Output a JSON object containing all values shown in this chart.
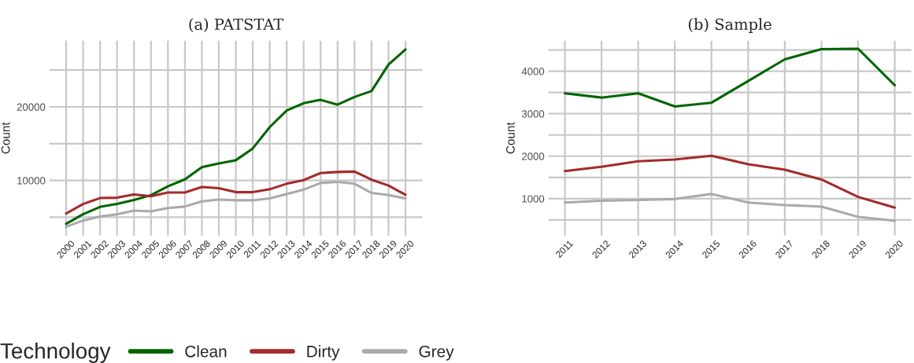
{
  "chart_data": [
    {
      "type": "line",
      "title": "(a) PATSTAT",
      "ylabel": "Count",
      "legend": "bottom",
      "legend_title": "Technology",
      "grid": true,
      "categories": [
        "2000",
        "2001",
        "2002",
        "2003",
        "2004",
        "2005",
        "2006",
        "2007",
        "2008",
        "2009",
        "2010",
        "2011",
        "2012",
        "2013",
        "2014",
        "2015",
        "2016",
        "2017",
        "2018",
        "2019",
        "2020"
      ],
      "ylim": [
        2500,
        29000
      ],
      "yticks": [
        {
          "value": 5000,
          "label": null
        },
        10000,
        {
          "value": 15000,
          "label": null
        },
        20000,
        {
          "value": 25000,
          "label": null
        }
      ],
      "series": [
        {
          "name": "Clean",
          "color": "#006400",
          "values": [
            4100,
            5400,
            6400,
            6800,
            7350,
            8000,
            9200,
            10150,
            11800,
            12300,
            12750,
            14350,
            17250,
            19500,
            20500,
            20950,
            20300,
            21350,
            22150,
            25750,
            27800
          ]
        },
        {
          "name": "Dirty",
          "color": "#a52a2a",
          "values": [
            5500,
            6800,
            7600,
            7650,
            8100,
            7850,
            8350,
            8350,
            9100,
            8950,
            8400,
            8400,
            8800,
            9550,
            10050,
            11000,
            11150,
            11200,
            10100,
            9300,
            8050
          ]
        },
        {
          "name": "Grey",
          "color": "#aaaaaa",
          "values": [
            3700,
            4550,
            5100,
            5400,
            5900,
            5800,
            6250,
            6450,
            7150,
            7400,
            7300,
            7300,
            7550,
            8150,
            8750,
            9650,
            9800,
            9550,
            8300,
            8000,
            7550
          ]
        }
      ]
    },
    {
      "type": "line",
      "title": "(b) Sample",
      "ylabel": "Count",
      "legend": "bottom",
      "grid": true,
      "categories": [
        "2011",
        "2012",
        "2013",
        "2014",
        "2015",
        "2016",
        "2017",
        "2018",
        "2019",
        "2020"
      ],
      "ylim": [
        130,
        4720
      ],
      "yticks": [
        {
          "value": 500,
          "label": null
        },
        1000,
        {
          "value": 1500,
          "label": null
        },
        2000,
        {
          "value": 2500,
          "label": null
        },
        3000,
        {
          "value": 3500,
          "label": null
        },
        4000,
        {
          "value": 4500,
          "label": null
        }
      ],
      "series": [
        {
          "name": "Clean",
          "color": "#006400",
          "values": [
            3480,
            3380,
            3480,
            3170,
            3260,
            3770,
            4280,
            4520,
            4530,
            3670
          ]
        },
        {
          "name": "Dirty",
          "color": "#a52a2a",
          "values": [
            1650,
            1750,
            1880,
            1920,
            2010,
            1810,
            1680,
            1450,
            1040,
            790
          ]
        },
        {
          "name": "Grey",
          "color": "#aaaaaa",
          "values": [
            910,
            950,
            970,
            990,
            1110,
            910,
            850,
            810,
            570,
            480
          ]
        }
      ]
    }
  ]
}
